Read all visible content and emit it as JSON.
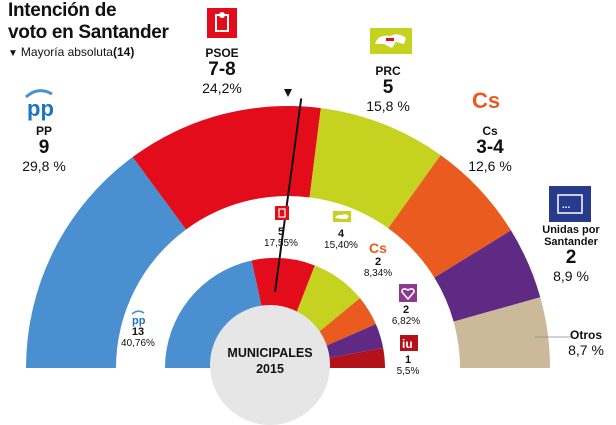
{
  "title_line1": "Intención de",
  "title_line2": "voto en Santander",
  "majority_label": "Mayoría absoluta",
  "majority_value": "(14)",
  "center_line1": "MUNICIPALES",
  "center_line2": "2015",
  "outer_parties": [
    {
      "name": "PP",
      "seats": "9",
      "pct": "29,8 %"
    },
    {
      "name": "PSOE",
      "seats": "7-8",
      "pct": "24,2%"
    },
    {
      "name": "PRC",
      "seats": "5",
      "pct": "15,8 %"
    },
    {
      "name": "Cs",
      "seats": "3-4",
      "pct": "12,6 %"
    },
    {
      "name": "Unidas por Santander",
      "seats": "2",
      "pct": "8,9 %"
    },
    {
      "name": "Otros",
      "seats": "",
      "pct": "8,7 %"
    }
  ],
  "inner_parties": [
    {
      "seats": "13",
      "pct": "40,76%"
    },
    {
      "seats": "5",
      "pct": "17,55%"
    },
    {
      "seats": "4",
      "pct": "15,40%"
    },
    {
      "seats": "2",
      "pct": "8,34%"
    },
    {
      "seats": "2",
      "pct": "6,82%"
    },
    {
      "seats": "1",
      "pct": "5,5%"
    }
  ],
  "logos": {
    "pp": "pp",
    "psoe": "PSOE"
  },
  "chart_data": [
    {
      "type": "pie",
      "categories": [
        "PP",
        "PSOE",
        "PRC",
        "Cs",
        "Unidas por Santander",
        "Otros"
      ],
      "values": [
        29.8,
        24.2,
        15.8,
        12.6,
        8.9,
        8.7
      ],
      "seats": [
        "9",
        "7-8",
        "5",
        "3-4",
        "2",
        ""
      ],
      "colors": [
        "#4a90d0",
        "#e30c1a",
        "#c5d21f",
        "#ea5b20",
        "#5e2a84",
        "#cbb99a"
      ],
      "title": "Intención de voto en Santander",
      "annotation": "Mayoría absoluta (14)"
    },
    {
      "type": "pie",
      "title": "MUNICIPALES 2015",
      "categories": [
        "PP",
        "PSOE",
        "PRC",
        "Cs",
        "Podemos",
        "IU"
      ],
      "values": [
        40.76,
        17.55,
        15.4,
        8.34,
        6.82,
        5.5
      ],
      "seats": [
        13,
        5,
        4,
        2,
        2,
        1
      ],
      "colors": [
        "#4a90d0",
        "#e30c1a",
        "#c5d21f",
        "#ea5b20",
        "#5e2a84",
        "#b3121b"
      ]
    }
  ],
  "colors": {
    "pp": "#4a90d0",
    "psoe": "#e30c1a",
    "prc": "#c5d21f",
    "cs": "#ea5b20",
    "ups": "#5e2a84",
    "others": "#cbb99a",
    "iu": "#b3121b",
    "center": "#e6e6e6"
  }
}
